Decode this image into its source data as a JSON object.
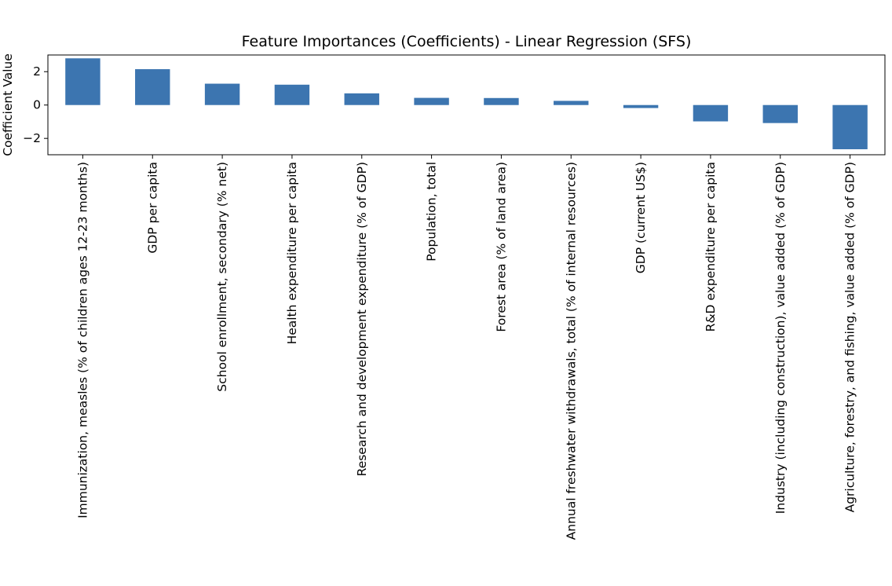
{
  "chart_data": {
    "type": "bar",
    "title": "Feature Importances (Coefficients) - Linear Regression (SFS)",
    "xlabel": "",
    "ylabel": "Coefficient Value",
    "categories": [
      "Immunization, measles (% of children ages 12-23 months)",
      "GDP per capita",
      "School enrollment, secondary (% net)",
      "Health expenditure per capita",
      "Research and development expenditure (% of GDP)",
      "Population, total",
      "Forest area (% of land area)",
      "Annual freshwater withdrawals, total (% of internal resources)",
      "GDP (current US$)",
      "R&D expenditure per capita",
      "Industry (including construction), value added (% of GDP)",
      "Agriculture, forestry, and fishing, value added (% of GDP)"
    ],
    "values": [
      2.8,
      2.15,
      1.28,
      1.22,
      0.7,
      0.43,
      0.42,
      0.25,
      -0.18,
      -0.98,
      -1.08,
      -2.65
    ],
    "ylim": [
      -2.98,
      3.0
    ],
    "yticks": [
      -2,
      0,
      2
    ],
    "ytick_labels": [
      "−2",
      "0",
      "2"
    ],
    "bar_color": "#3c75b0",
    "grid": false,
    "legend": "none"
  }
}
